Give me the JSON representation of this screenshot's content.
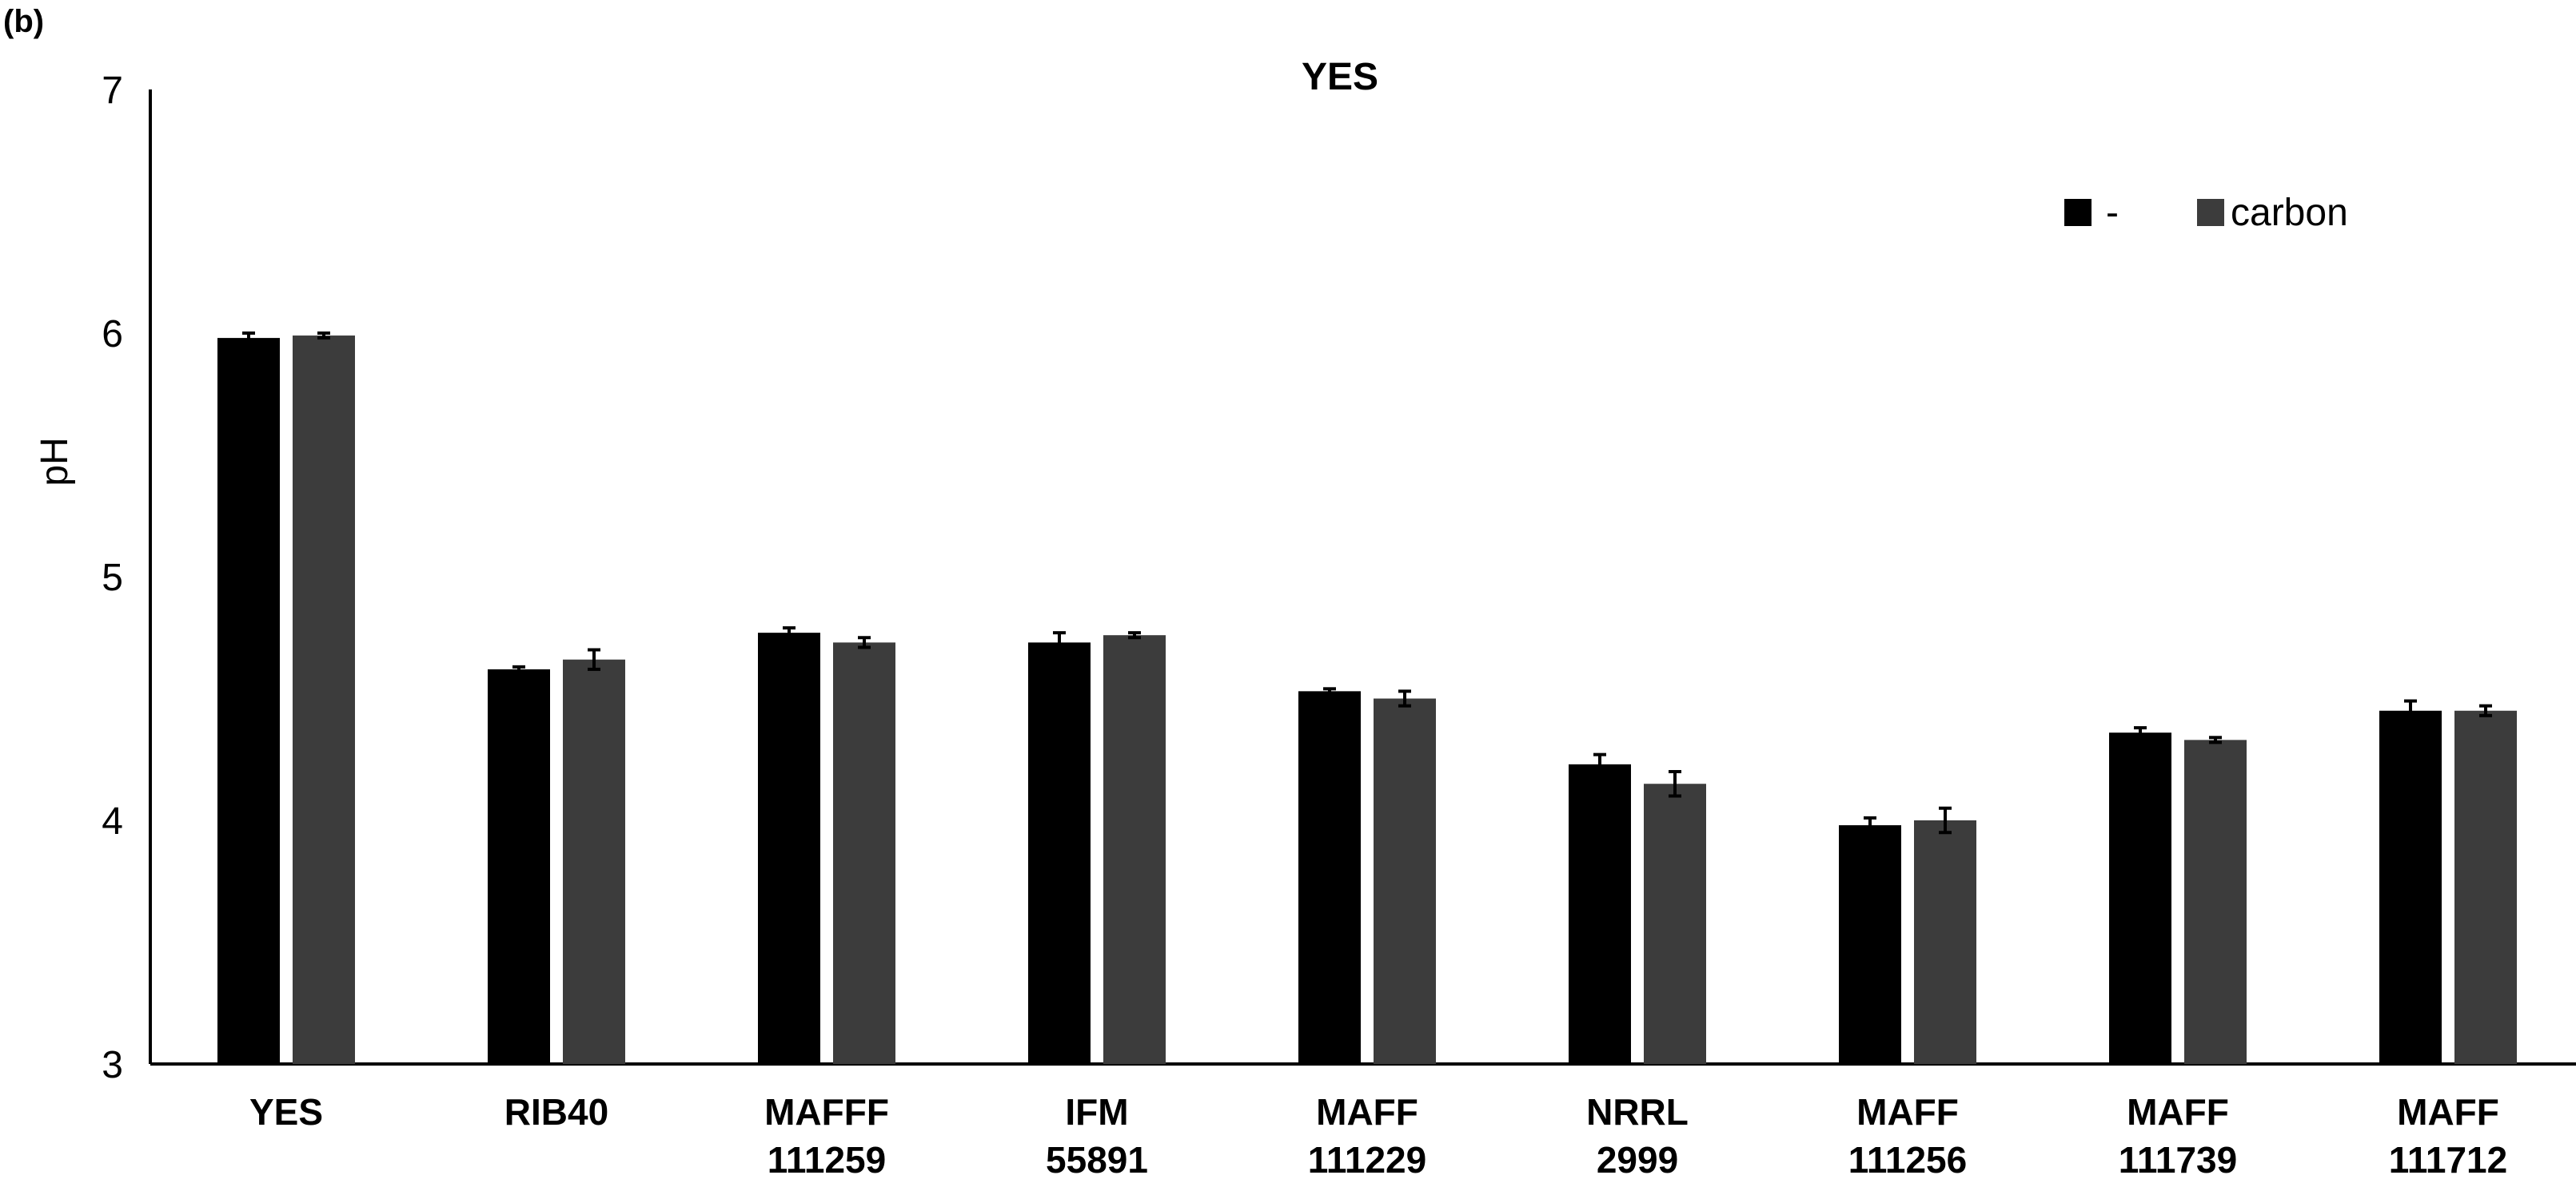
{
  "panel_label": "(b)",
  "chart_data": {
    "type": "bar",
    "title": "YES",
    "xlabel": "",
    "ylabel": "pH",
    "ylim": [
      3,
      7
    ],
    "yticks": [
      "3",
      "4",
      "5",
      "6",
      "7"
    ],
    "categories": [
      [
        "YES"
      ],
      [
        "RIB40"
      ],
      [
        "MAFFF",
        "111259"
      ],
      [
        "IFM",
        "55891"
      ],
      [
        "MAFF",
        "111229"
      ],
      [
        "NRRL",
        "2999"
      ],
      [
        "MAFF",
        "111256"
      ],
      [
        "MAFF",
        "111739"
      ],
      [
        "MAFF",
        "111712"
      ]
    ],
    "series": [
      {
        "name": "-",
        "color": "#000000",
        "values": [
          5.98,
          4.62,
          4.77,
          4.73,
          4.53,
          4.23,
          3.98,
          4.36,
          4.45
        ],
        "errors": [
          0.02,
          0.01,
          0.02,
          0.04,
          0.01,
          0.04,
          0.03,
          0.02,
          0.04
        ]
      },
      {
        "name": "carbon",
        "color": "#3c3c3c",
        "values": [
          5.99,
          4.66,
          4.73,
          4.76,
          4.5,
          4.15,
          4.0,
          4.33,
          4.45
        ],
        "errors": [
          0.01,
          0.04,
          0.02,
          0.01,
          0.03,
          0.05,
          0.05,
          0.01,
          0.02
        ]
      }
    ],
    "grid": false,
    "legend": "top-right"
  }
}
